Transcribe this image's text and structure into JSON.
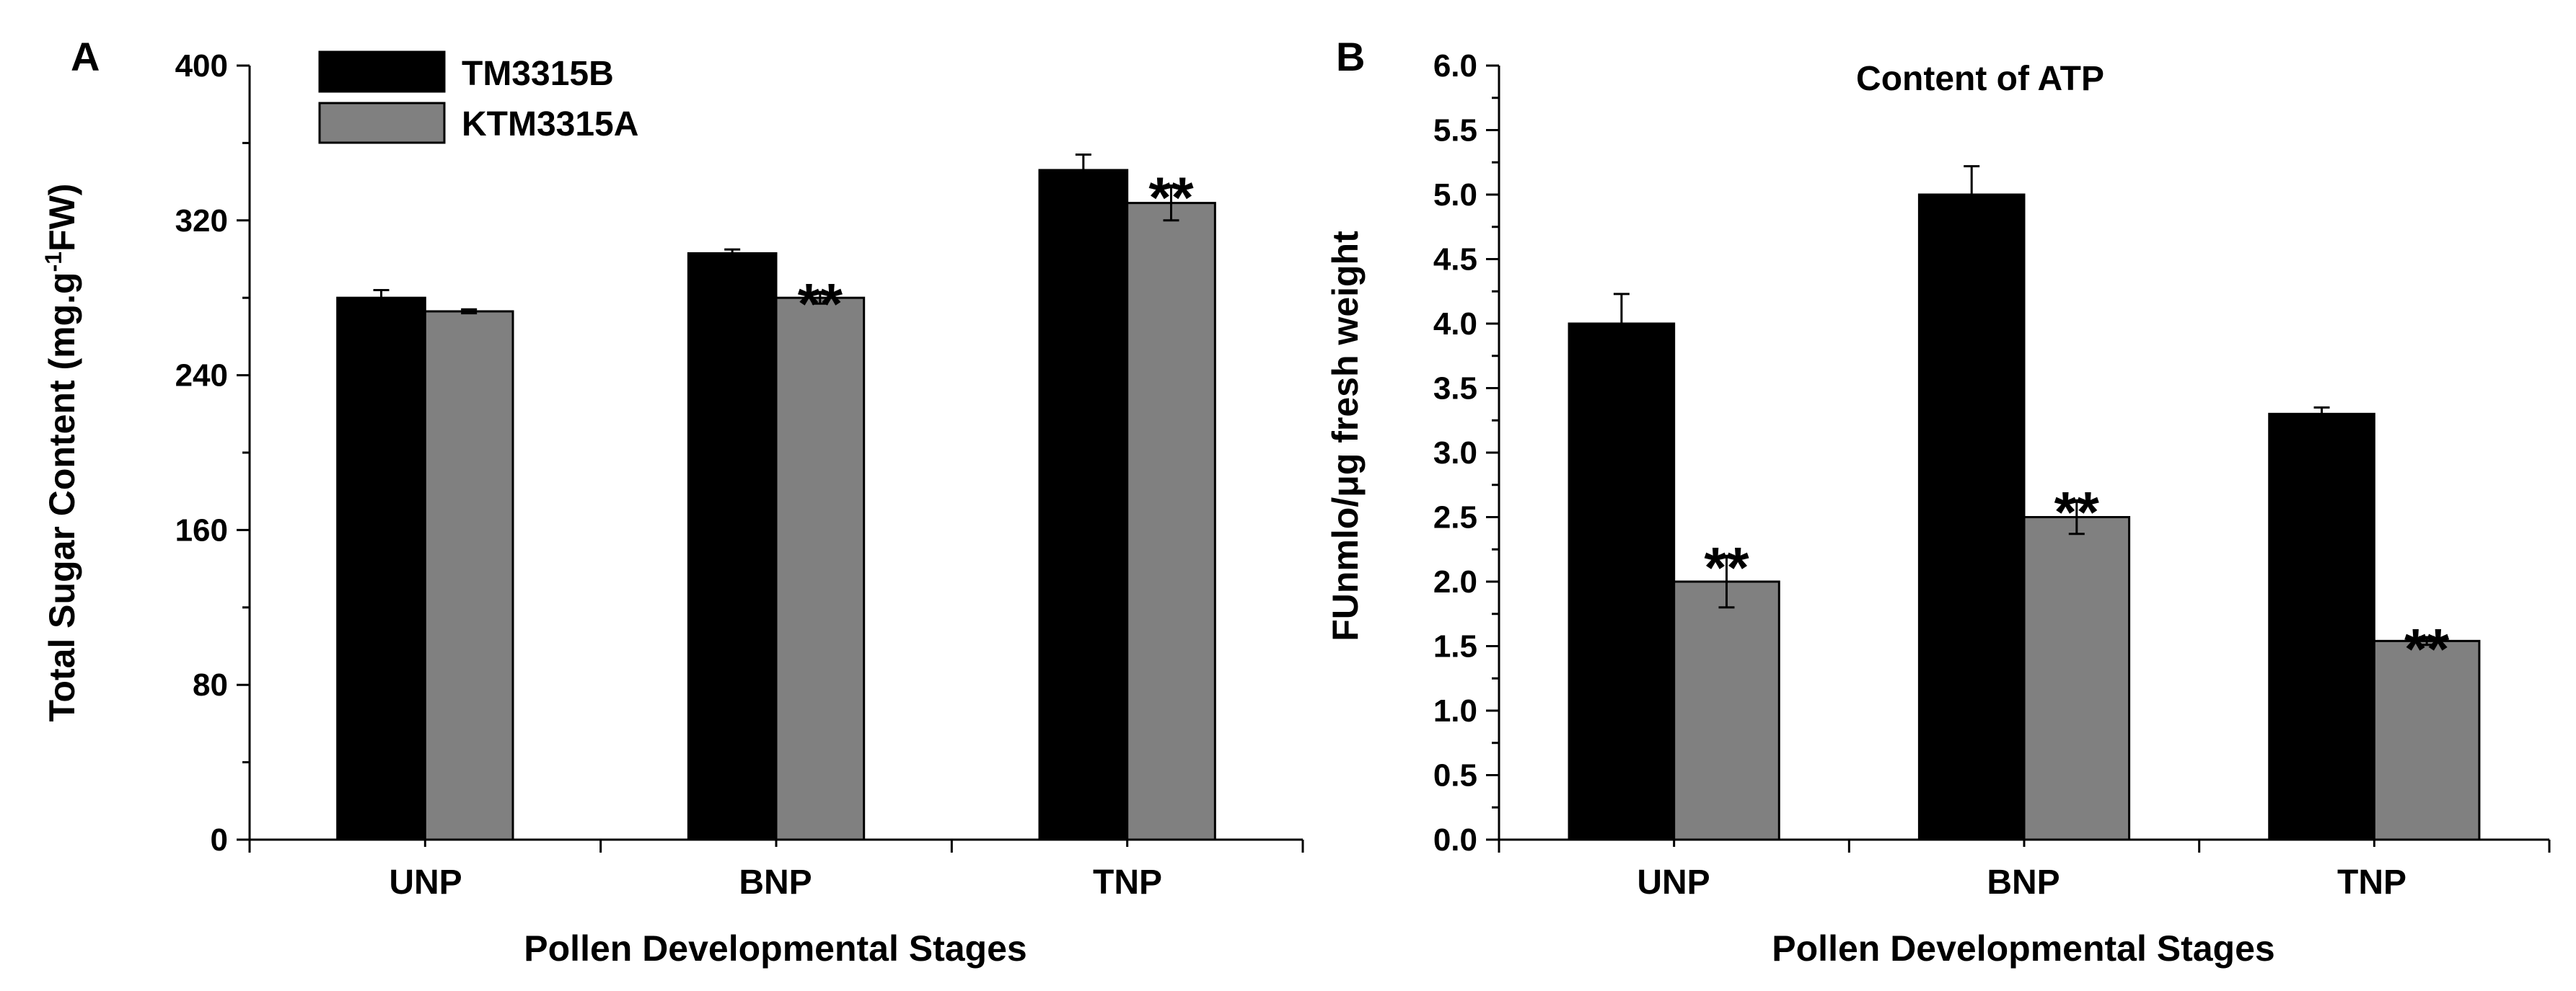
{
  "chart_data": [
    {
      "panel": "A",
      "type": "bar",
      "title": "",
      "xlabel": "Pollen Developmental Stages",
      "ylabel_main": "Total Sugar Content (mg.g",
      "ylabel_sup": "-1",
      "ylabel_tail": "FW)",
      "ylim": [
        0,
        400
      ],
      "yticks": [
        0,
        80,
        160,
        240,
        320,
        400
      ],
      "categories": [
        "UNP",
        "BNP",
        "TNP"
      ],
      "series": [
        {
          "name": "TM3315B",
          "color": "#000000",
          "values": [
            280,
            303,
            346
          ],
          "errors": [
            4,
            2,
            8
          ]
        },
        {
          "name": "KTM3315A",
          "color": "#808080",
          "values": [
            273,
            280,
            329
          ],
          "errors": [
            1,
            3,
            9
          ]
        }
      ],
      "significance": [
        {
          "category": "BNP",
          "series": "KTM3315A",
          "label": "**"
        },
        {
          "category": "TNP",
          "series": "KTM3315A",
          "label": "**"
        }
      ],
      "legend": "top-left"
    },
    {
      "panel": "B",
      "type": "bar",
      "title": "Content of ATP",
      "xlabel": "Pollen Developmental Stages",
      "ylabel": "FUnmlo/μg fresh weight",
      "ylim": [
        0,
        6
      ],
      "yticks": [
        "0.0",
        "0.5",
        "1.0",
        "1.5",
        "2.0",
        "2.5",
        "3.0",
        "3.5",
        "4.0",
        "4.5",
        "5.0",
        "5.5",
        "6.0"
      ],
      "categories": [
        "UNP",
        "BNP",
        "TNP"
      ],
      "series": [
        {
          "name": "TM3315B",
          "color": "#000000",
          "values": [
            4.0,
            5.0,
            3.3
          ],
          "errors": [
            0.23,
            0.22,
            0.05
          ]
        },
        {
          "name": "KTM3315A",
          "color": "#808080",
          "values": [
            2.0,
            2.5,
            1.54
          ],
          "errors": [
            0.2,
            0.13,
            0.03
          ]
        }
      ],
      "significance": [
        {
          "category": "UNP",
          "series": "KTM3315A",
          "label": "**"
        },
        {
          "category": "BNP",
          "series": "KTM3315A",
          "label": "**"
        },
        {
          "category": "TNP",
          "series": "KTM3315A",
          "label": "**"
        }
      ]
    }
  ]
}
